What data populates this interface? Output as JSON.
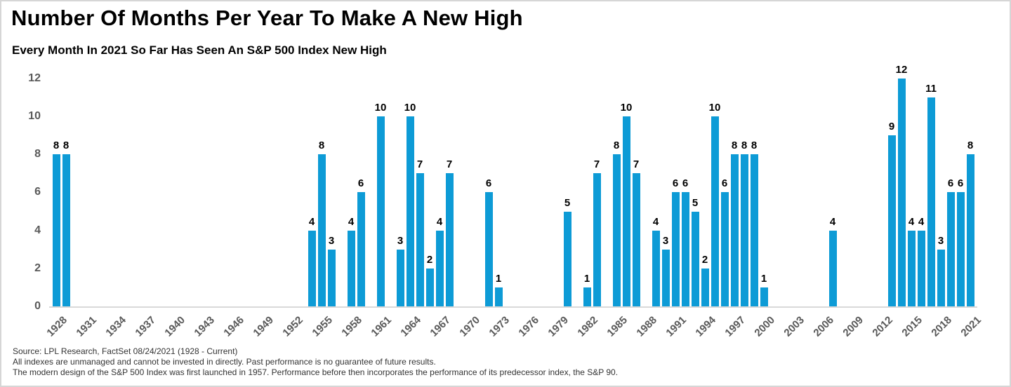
{
  "header": {
    "title": "Number Of Months Per Year To Make A New High",
    "subtitle": "Every Month In 2021 So Far Has Seen An S&P 500 Index New High"
  },
  "footer": {
    "source_line": "Source: LPL Research, FactSet 08/24/2021 (1928 - Current)",
    "disclaimer_line_1": "All indexes are unmanaged and cannot be invested in directly. Past performance is no guarantee of future results.",
    "disclaimer_line_2": "The modern design of the S&P 500 Index was first launched in 1957. Performance before then incorporates the performance of its predecessor index, the S&P 90."
  },
  "chart_data": {
    "type": "bar",
    "title": "Number Of Months Per Year To Make A New High",
    "subtitle": "Every Month In 2021 So Far Has Seen An S&P 500 Index New High",
    "xlabel": "",
    "ylabel": "",
    "ylim": [
      0,
      12
    ],
    "y_ticks": [
      0,
      2,
      4,
      6,
      8,
      10,
      12
    ],
    "x_range": [
      1928,
      2021
    ],
    "x_tick_years": [
      1928,
      1931,
      1934,
      1937,
      1940,
      1943,
      1946,
      1949,
      1952,
      1955,
      1958,
      1961,
      1964,
      1967,
      1970,
      1973,
      1976,
      1979,
      1982,
      1985,
      1988,
      1991,
      1994,
      1997,
      2000,
      2003,
      2006,
      2009,
      2012,
      2015,
      2018,
      2021
    ],
    "grid": false,
    "legend": "none",
    "data_labels": true,
    "bar_color": "#0d9bd6",
    "axis_text_color": "#595959",
    "data_label_color": "#000000",
    "points": [
      {
        "year": 1928,
        "value": 8
      },
      {
        "year": 1929,
        "value": 8
      },
      {
        "year": 1954,
        "value": 4
      },
      {
        "year": 1955,
        "value": 8
      },
      {
        "year": 1956,
        "value": 3
      },
      {
        "year": 1958,
        "value": 4
      },
      {
        "year": 1959,
        "value": 6
      },
      {
        "year": 1961,
        "value": 10
      },
      {
        "year": 1963,
        "value": 3
      },
      {
        "year": 1964,
        "value": 10
      },
      {
        "year": 1965,
        "value": 7
      },
      {
        "year": 1966,
        "value": 2
      },
      {
        "year": 1967,
        "value": 4
      },
      {
        "year": 1968,
        "value": 7
      },
      {
        "year": 1972,
        "value": 6
      },
      {
        "year": 1973,
        "value": 1
      },
      {
        "year": 1980,
        "value": 5
      },
      {
        "year": 1982,
        "value": 1
      },
      {
        "year": 1983,
        "value": 7
      },
      {
        "year": 1985,
        "value": 8
      },
      {
        "year": 1986,
        "value": 10
      },
      {
        "year": 1987,
        "value": 7
      },
      {
        "year": 1989,
        "value": 4
      },
      {
        "year": 1990,
        "value": 3
      },
      {
        "year": 1991,
        "value": 6
      },
      {
        "year": 1992,
        "value": 6
      },
      {
        "year": 1993,
        "value": 5
      },
      {
        "year": 1994,
        "value": 2
      },
      {
        "year": 1995,
        "value": 10
      },
      {
        "year": 1996,
        "value": 6
      },
      {
        "year": 1997,
        "value": 8
      },
      {
        "year": 1998,
        "value": 8
      },
      {
        "year": 1999,
        "value": 8
      },
      {
        "year": 2000,
        "value": 1
      },
      {
        "year": 2007,
        "value": 4
      },
      {
        "year": 2013,
        "value": 9
      },
      {
        "year": 2014,
        "value": 12
      },
      {
        "year": 2015,
        "value": 4
      },
      {
        "year": 2016,
        "value": 4
      },
      {
        "year": 2017,
        "value": 11
      },
      {
        "year": 2018,
        "value": 3
      },
      {
        "year": 2019,
        "value": 6
      },
      {
        "year": 2020,
        "value": 6
      },
      {
        "year": 2021,
        "value": 8
      }
    ]
  }
}
